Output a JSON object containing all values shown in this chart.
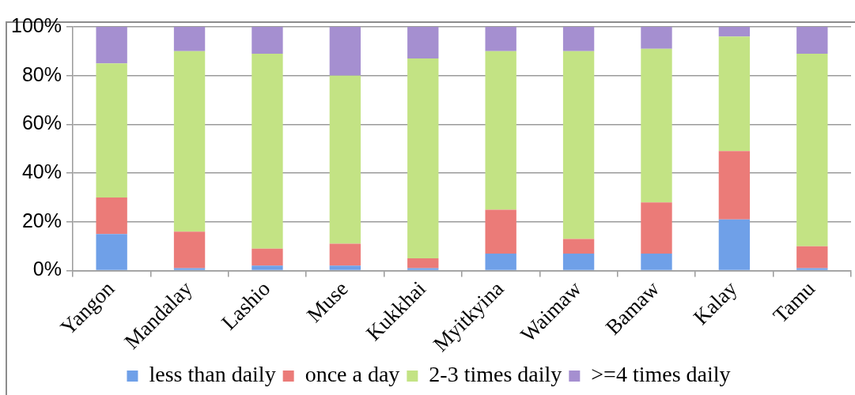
{
  "chart_data": {
    "type": "bar",
    "stacked": true,
    "categories": [
      "Yangon",
      "Mandalay",
      "Lashio",
      "Muse",
      "Kukkhai",
      "Myitkyina",
      "Waimaw",
      "Bamaw",
      "Kalay",
      "Tamu"
    ],
    "series": [
      {
        "name": "less than daily",
        "color": "#6fa0e8",
        "values": [
          15,
          1,
          2,
          2,
          1,
          7,
          7,
          7,
          21,
          1
        ]
      },
      {
        "name": "once a day",
        "color": "#eb7b78",
        "values": [
          15,
          15,
          7,
          9,
          4,
          18,
          6,
          21,
          28,
          9
        ]
      },
      {
        "name": "2-3 times daily",
        "color": "#c3e384",
        "values": [
          55,
          74,
          80,
          69,
          82,
          65,
          77,
          63,
          47,
          79
        ]
      },
      {
        "name": ">=4 times daily",
        "color": "#a58fd0",
        "values": [
          15,
          10,
          11,
          20,
          13,
          10,
          10,
          9,
          4,
          11
        ]
      }
    ],
    "ylim": [
      0,
      100
    ],
    "yticks": [
      {
        "value": 0,
        "label": "0%"
      },
      {
        "value": 20,
        "label": "20%"
      },
      {
        "value": 40,
        "label": "40%"
      },
      {
        "value": 60,
        "label": "60%"
      },
      {
        "value": 80,
        "label": "80%"
      },
      {
        "value": 100,
        "label": "100%"
      }
    ],
    "grid": "y",
    "legend": "bottom"
  }
}
